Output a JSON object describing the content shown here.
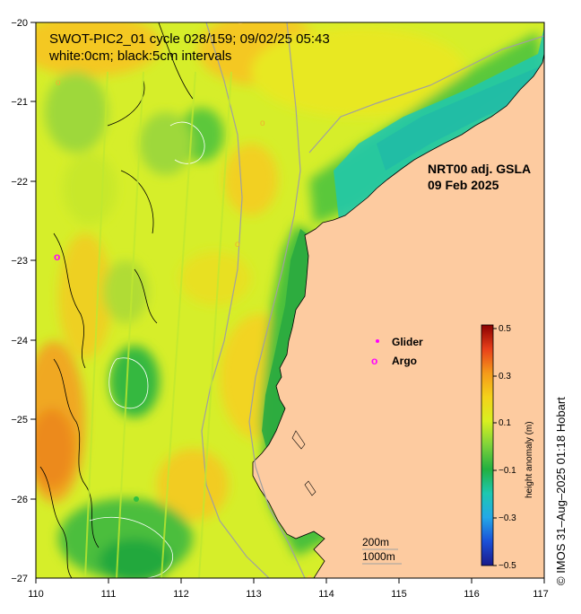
{
  "title": {
    "line1": "SWOT-PIC2_01 cycle 028/159; 09/02/25 05:43",
    "line2": "white:0cm; black:5cm intervals"
  },
  "product": {
    "line1": "NRT00 adj. GSLA",
    "line2": "09 Feb 2025"
  },
  "legend": {
    "glider_label": "Glider",
    "argo_label": "Argo",
    "glider_color": "#ff00ff",
    "argo_color": "#ff00ff",
    "isobath_200": "200m",
    "isobath_1000": "1000m"
  },
  "colorbar": {
    "title": "height anomaly (m)",
    "ticks": [
      "0.5",
      "0.3",
      "0.1",
      "−0.1",
      "−0.3",
      "−0.5"
    ],
    "range": [
      -0.5,
      0.5
    ],
    "colors": [
      "#8b0000",
      "#e8401a",
      "#f59a1a",
      "#f4d21a",
      "#d8f020",
      "#7ed23a",
      "#22b040",
      "#1ec8b0",
      "#24a8e8",
      "#1a50d8",
      "#1a1a8a"
    ]
  },
  "axes": {
    "x_ticks": [
      "110",
      "111",
      "112",
      "113",
      "114",
      "115",
      "116",
      "117"
    ],
    "y_ticks": [
      "−20",
      "−21",
      "−22",
      "−23",
      "−24",
      "−25",
      "−26",
      "−27"
    ],
    "lon_range": [
      110,
      117
    ],
    "lat_range": [
      -27,
      -20
    ]
  },
  "argo_marker": "o",
  "copyright": "© IMOS 31–Aug–2025 01:18 Hobart",
  "colors": {
    "land": "#fdcba0",
    "ocean_base": "#d6ee2a",
    "coast_line": "#000000",
    "isobath": "#a0a0a0"
  }
}
